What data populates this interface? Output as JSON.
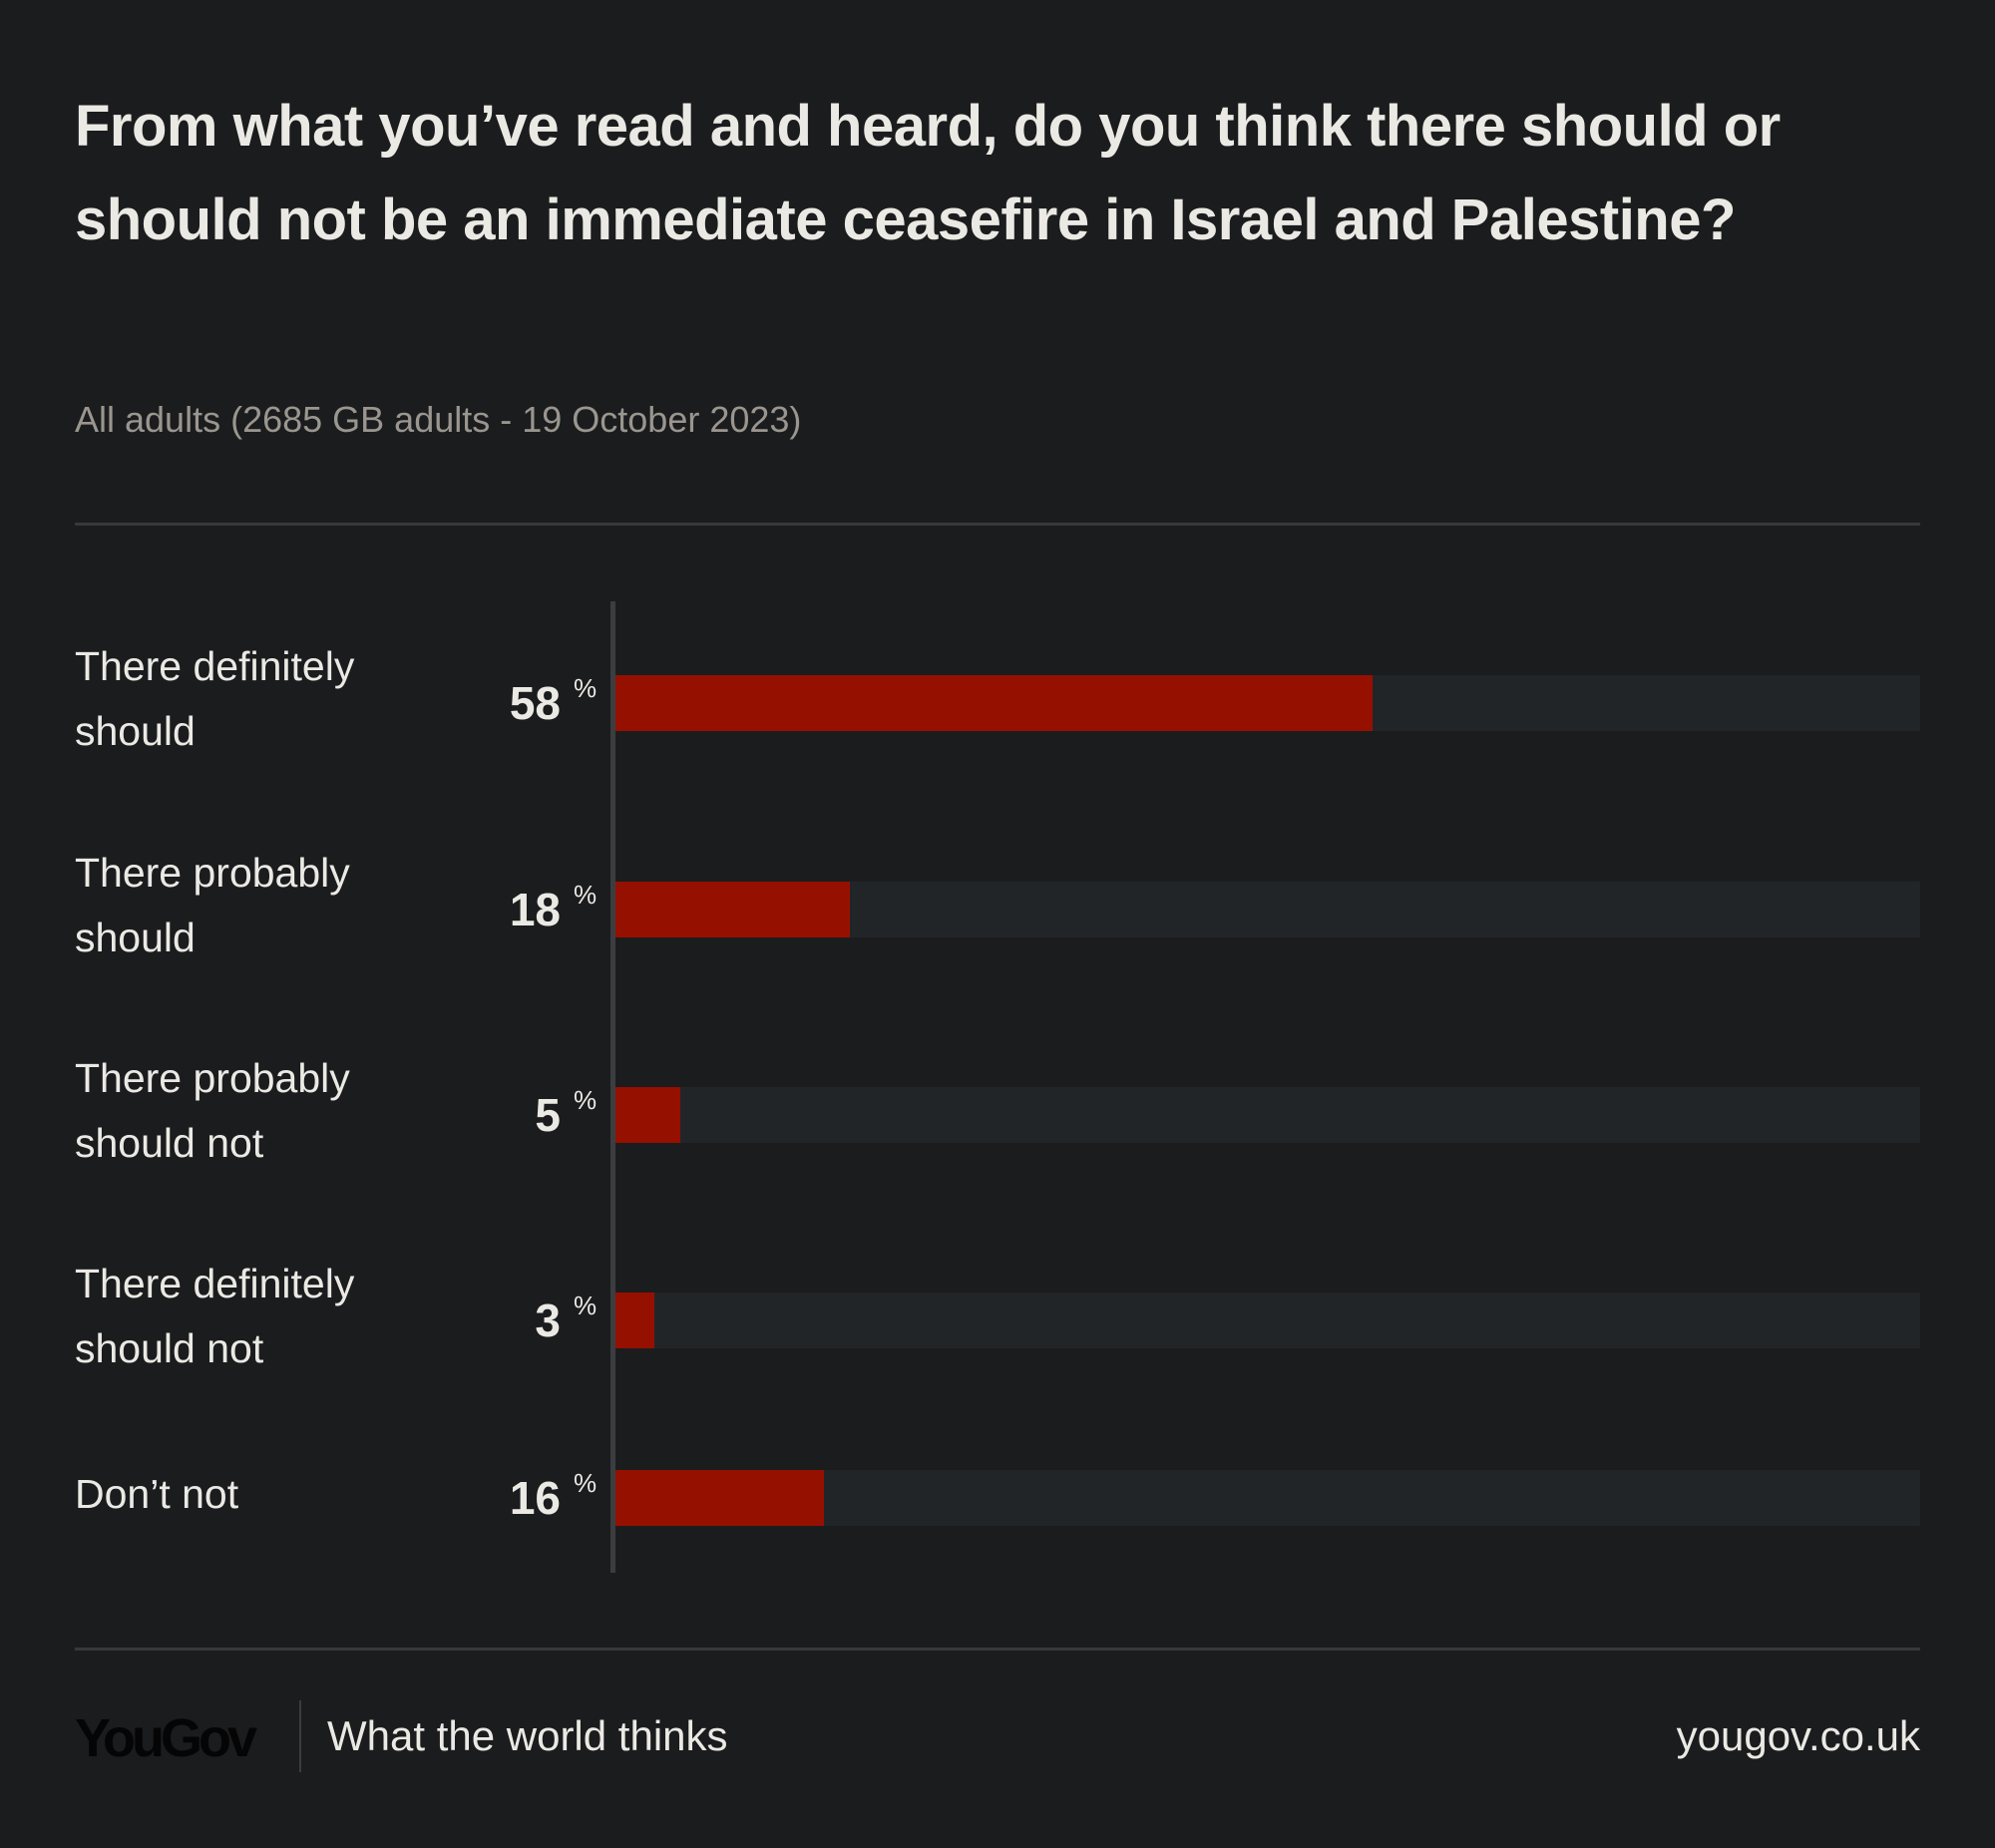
{
  "title": "From what you’ve read and heard, do you think there should or should not be an immediate ceasefire in Israel and Palestine?",
  "subtitle": "All adults (2685 GB adults - 19 October 2023)",
  "chart_data": {
    "type": "bar",
    "orientation": "horizontal",
    "categories": [
      "There definitely should",
      "There probably should",
      "There probably should not",
      "There definitely should not",
      "Don’t not"
    ],
    "values": [
      58,
      18,
      5,
      3,
      16
    ],
    "unit": "%",
    "xlim": [
      0,
      100
    ],
    "colors": {
      "bar": "#961000",
      "track": "#222528"
    }
  },
  "footer": {
    "logo": "YouGov",
    "tagline": "What the world thinks",
    "site": "yougov.co.uk"
  }
}
